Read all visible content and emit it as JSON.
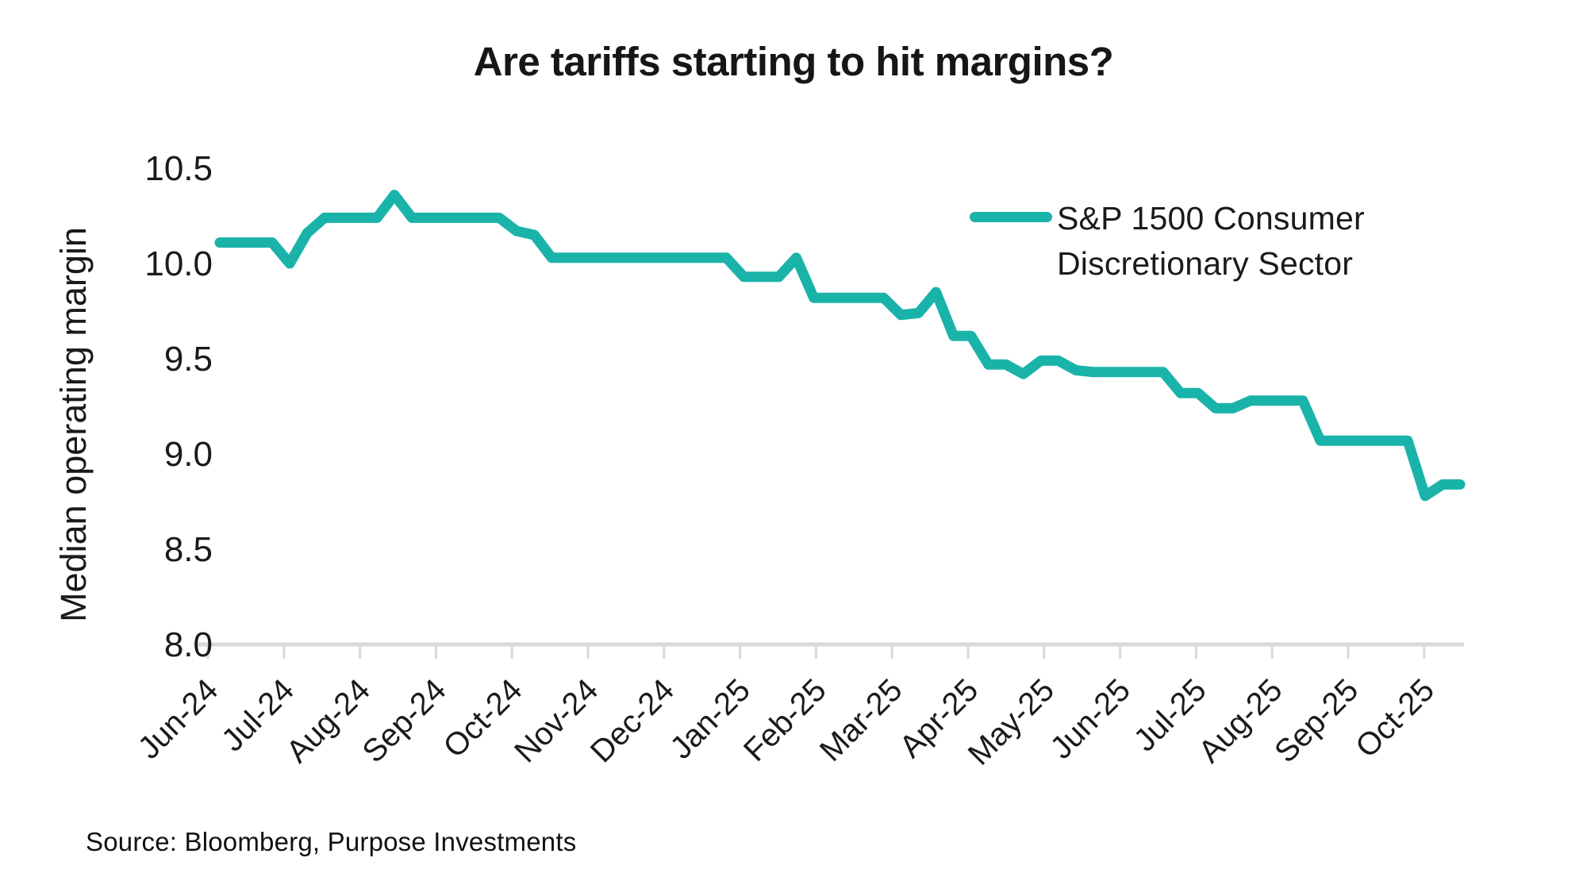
{
  "title": "Are tariffs starting to hit margins?",
  "source": "Source: Bloomberg, Purpose Investments",
  "legend": {
    "label": "S&P 1500 Consumer Discretionary Sector",
    "swatch_color": "#1ab3aa"
  },
  "colors": {
    "series": "#1ab3aa",
    "axis": "#d9d9d9",
    "text": "#1a1a1a"
  },
  "chart_data": {
    "type": "line",
    "title": "Are tariffs starting to hit margins?",
    "xlabel": "",
    "ylabel": "Median operating margin",
    "ylim": [
      8.0,
      10.5
    ],
    "y_tick_labels": [
      "10.5",
      "10.0",
      "9.5",
      "9.0",
      "8.5",
      "8.0"
    ],
    "y_tick_values": [
      10.5,
      10.0,
      9.5,
      9.0,
      8.5,
      8.0
    ],
    "x_tick_labels": [
      "Jun-24",
      "Jul-24",
      "Aug-24",
      "Sep-24",
      "Oct-24",
      "Nov-24",
      "Dec-24",
      "Jan-25",
      "Feb-25",
      "Mar-25",
      "Apr-25",
      "May-25",
      "Jun-25",
      "Jul-25",
      "Aug-25",
      "Sep-25",
      "Oct-25"
    ],
    "grid": false,
    "legend_position": "upper right",
    "series": [
      {
        "name": "S&P 1500 Consumer Discretionary Sector",
        "color": "#1ab3aa",
        "frequency": "weekly",
        "points": [
          [
            "2024-06-07",
            10.11
          ],
          [
            "2024-06-14",
            10.11
          ],
          [
            "2024-06-21",
            10.11
          ],
          [
            "2024-06-28",
            10.11
          ],
          [
            "2024-07-05",
            10.0
          ],
          [
            "2024-07-12",
            10.16
          ],
          [
            "2024-07-19",
            10.24
          ],
          [
            "2024-07-26",
            10.24
          ],
          [
            "2024-08-02",
            10.24
          ],
          [
            "2024-08-09",
            10.24
          ],
          [
            "2024-08-16",
            10.36
          ],
          [
            "2024-08-23",
            10.24
          ],
          [
            "2024-08-30",
            10.24
          ],
          [
            "2024-09-06",
            10.24
          ],
          [
            "2024-09-13",
            10.24
          ],
          [
            "2024-09-20",
            10.24
          ],
          [
            "2024-09-27",
            10.24
          ],
          [
            "2024-10-04",
            10.17
          ],
          [
            "2024-10-11",
            10.15
          ],
          [
            "2024-10-18",
            10.03
          ],
          [
            "2024-10-25",
            10.03
          ],
          [
            "2024-11-01",
            10.03
          ],
          [
            "2024-11-08",
            10.03
          ],
          [
            "2024-11-15",
            10.03
          ],
          [
            "2024-11-22",
            10.03
          ],
          [
            "2024-11-29",
            10.03
          ],
          [
            "2024-12-06",
            10.03
          ],
          [
            "2024-12-13",
            10.03
          ],
          [
            "2024-12-20",
            10.03
          ],
          [
            "2024-12-27",
            10.03
          ],
          [
            "2025-01-03",
            9.93
          ],
          [
            "2025-01-10",
            9.93
          ],
          [
            "2025-01-17",
            9.93
          ],
          [
            "2025-01-24",
            10.03
          ],
          [
            "2025-01-31",
            9.82
          ],
          [
            "2025-02-07",
            9.82
          ],
          [
            "2025-02-14",
            9.82
          ],
          [
            "2025-02-21",
            9.82
          ],
          [
            "2025-02-28",
            9.82
          ],
          [
            "2025-03-07",
            9.73
          ],
          [
            "2025-03-14",
            9.74
          ],
          [
            "2025-03-21",
            9.85
          ],
          [
            "2025-03-28",
            9.62
          ],
          [
            "2025-04-04",
            9.62
          ],
          [
            "2025-04-11",
            9.47
          ],
          [
            "2025-04-18",
            9.47
          ],
          [
            "2025-04-25",
            9.42
          ],
          [
            "2025-05-02",
            9.49
          ],
          [
            "2025-05-09",
            9.49
          ],
          [
            "2025-05-16",
            9.44
          ],
          [
            "2025-05-23",
            9.43
          ],
          [
            "2025-05-30",
            9.43
          ],
          [
            "2025-06-06",
            9.43
          ],
          [
            "2025-06-13",
            9.43
          ],
          [
            "2025-06-20",
            9.43
          ],
          [
            "2025-06-27",
            9.32
          ],
          [
            "2025-07-04",
            9.32
          ],
          [
            "2025-07-11",
            9.24
          ],
          [
            "2025-07-18",
            9.24
          ],
          [
            "2025-07-25",
            9.28
          ],
          [
            "2025-08-01",
            9.28
          ],
          [
            "2025-08-08",
            9.28
          ],
          [
            "2025-08-15",
            9.28
          ],
          [
            "2025-08-22",
            9.07
          ],
          [
            "2025-08-29",
            9.07
          ],
          [
            "2025-09-05",
            9.07
          ],
          [
            "2025-09-12",
            9.07
          ],
          [
            "2025-09-19",
            9.07
          ],
          [
            "2025-09-26",
            9.07
          ],
          [
            "2025-10-03",
            8.78
          ],
          [
            "2025-10-10",
            8.84
          ],
          [
            "2025-10-17",
            8.84
          ]
        ]
      }
    ]
  }
}
